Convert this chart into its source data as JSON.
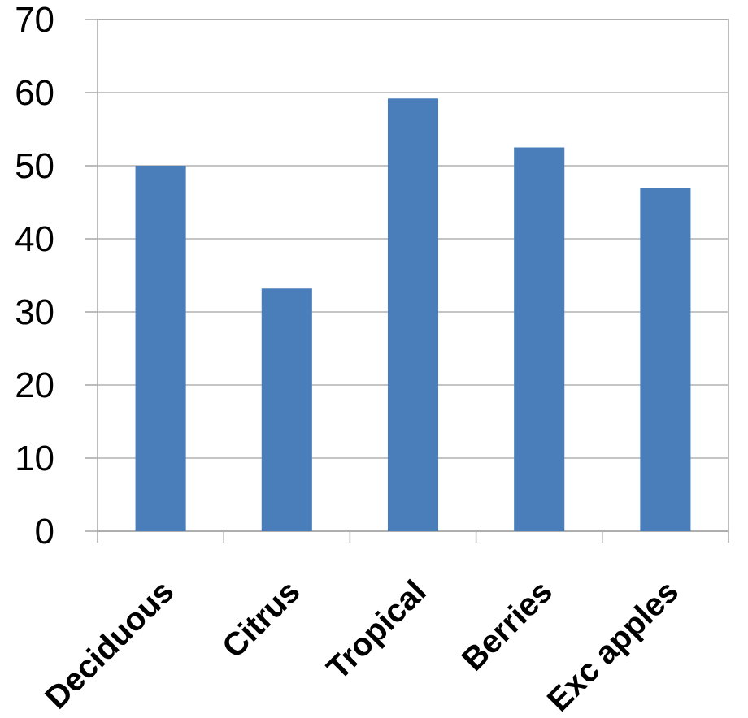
{
  "chart_data": {
    "type": "bar",
    "categories": [
      "Deciduous",
      "Citrus",
      "Tropical",
      "Berries",
      "Exc apples"
    ],
    "values": [
      50,
      33.2,
      59.2,
      52.5,
      46.9
    ],
    "color": "#4a7ebb",
    "ylim": [
      0,
      70
    ],
    "yticks": [
      0,
      10,
      20,
      30,
      40,
      50,
      60,
      70
    ],
    "grid": "y"
  }
}
